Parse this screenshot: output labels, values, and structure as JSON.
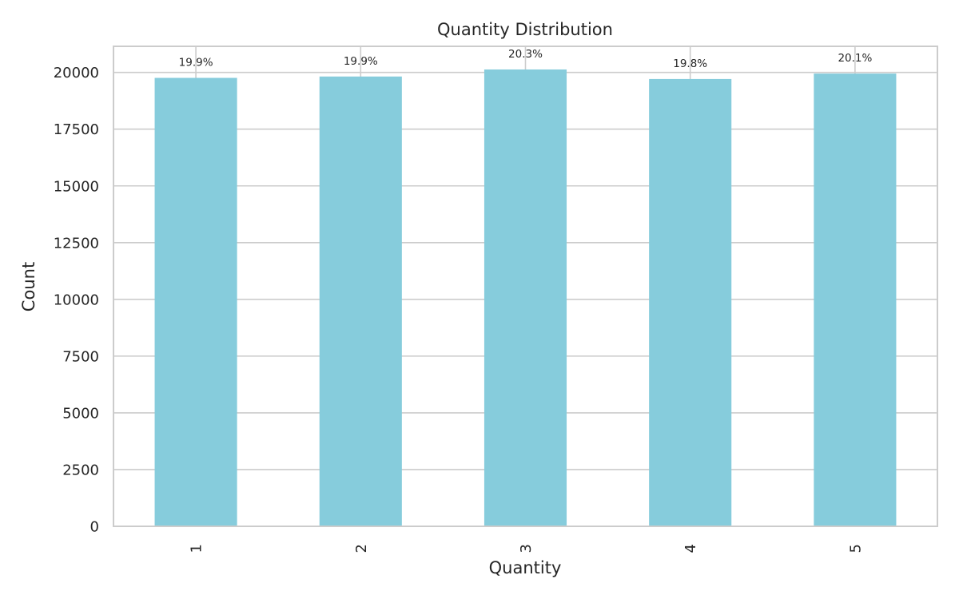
{
  "chart_data": {
    "type": "bar",
    "title": "Quantity Distribution",
    "xlabel": "Quantity",
    "ylabel": "Count",
    "categories": [
      "1",
      "2",
      "3",
      "4",
      "5"
    ],
    "values": [
      19760,
      19820,
      20130,
      19710,
      19950
    ],
    "data_labels": [
      "19.9%",
      "19.9%",
      "20.3%",
      "19.8%",
      "20.1%"
    ],
    "ylim": [
      0,
      21150
    ],
    "yticks": [
      0,
      2500,
      5000,
      7500,
      10000,
      12500,
      15000,
      17500,
      20000
    ],
    "grid": true,
    "bar_color": "#86ccdc"
  }
}
